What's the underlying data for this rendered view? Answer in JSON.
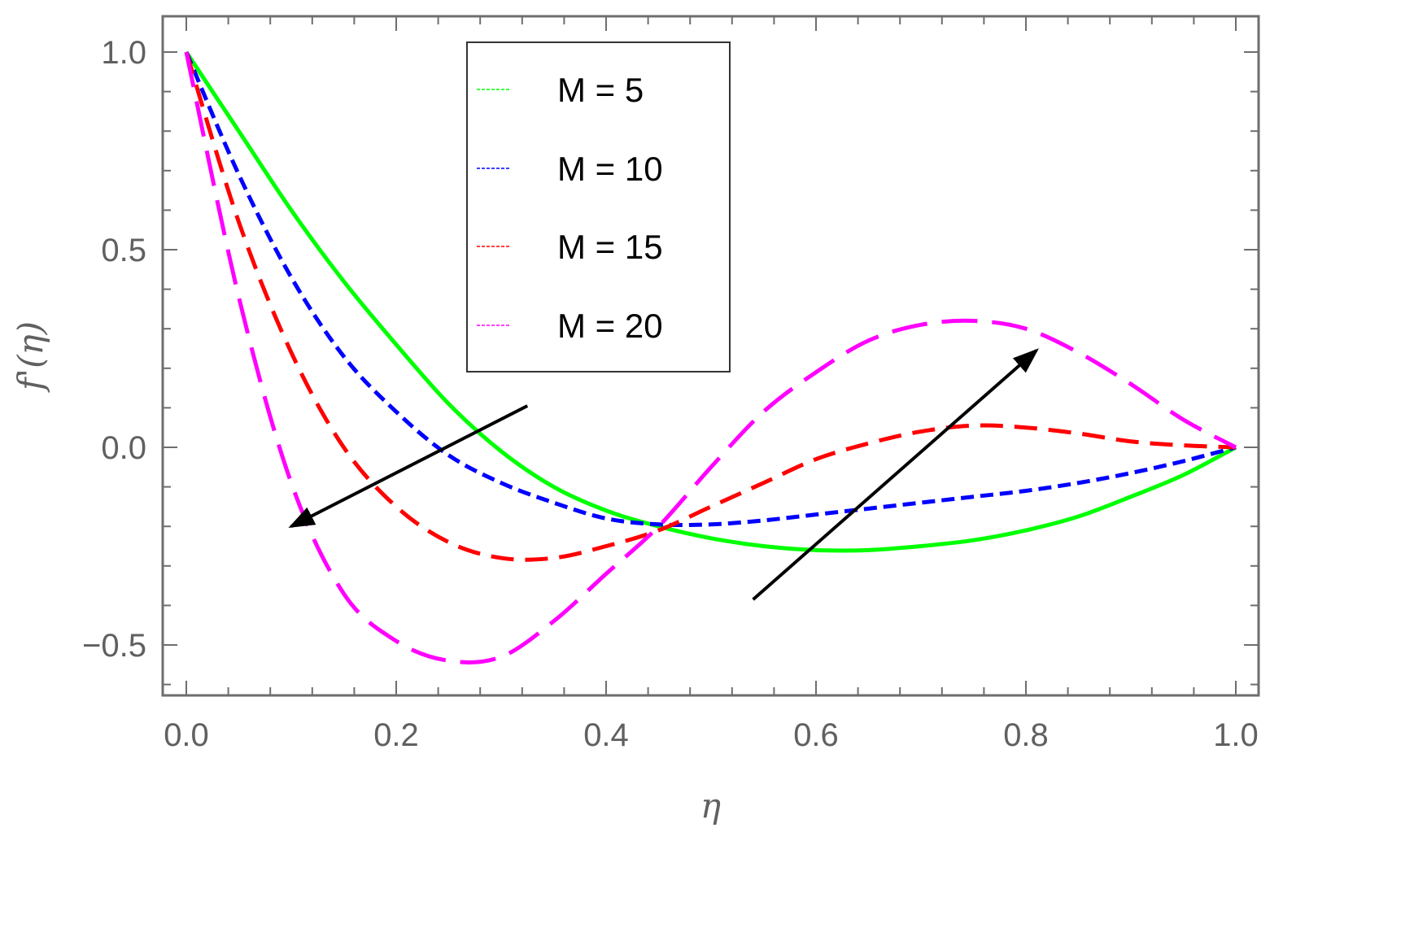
{
  "chart_data": {
    "type": "line",
    "title": "",
    "xlabel": "η",
    "ylabel": "f'(η)",
    "xlim": [
      0.0,
      1.0
    ],
    "ylim": [
      -0.6,
      1.05
    ],
    "x_ticks": [
      0.0,
      0.2,
      0.4,
      0.6,
      0.8,
      1.0
    ],
    "x_tick_labels": [
      "0.0",
      "0.2",
      "0.4",
      "0.6",
      "0.8",
      "1.0"
    ],
    "y_ticks": [
      -0.5,
      0.0,
      0.5,
      1.0
    ],
    "y_tick_labels": [
      "−0.5",
      "0.0",
      "0.5",
      "1.0"
    ],
    "legend_position": "top-center",
    "series": [
      {
        "name": "M = 5",
        "color": "#00ff00",
        "dash": "solid",
        "x": [
          0.0,
          0.05,
          0.1,
          0.15,
          0.2,
          0.25,
          0.3,
          0.35,
          0.4,
          0.45,
          0.5,
          0.55,
          0.6,
          0.65,
          0.7,
          0.75,
          0.8,
          0.85,
          0.9,
          0.95,
          1.0
        ],
        "y": [
          1.0,
          0.8,
          0.6,
          0.42,
          0.26,
          0.11,
          -0.01,
          -0.1,
          -0.16,
          -0.2,
          -0.23,
          -0.25,
          -0.26,
          -0.26,
          -0.25,
          -0.235,
          -0.21,
          -0.175,
          -0.125,
          -0.07,
          0.0
        ]
      },
      {
        "name": "M = 10",
        "color": "#0000ff",
        "dash": "short",
        "x": [
          0.0,
          0.05,
          0.1,
          0.15,
          0.2,
          0.25,
          0.3,
          0.35,
          0.4,
          0.45,
          0.5,
          0.55,
          0.6,
          0.65,
          0.7,
          0.75,
          0.8,
          0.85,
          0.9,
          0.95,
          1.0
        ],
        "y": [
          1.0,
          0.69,
          0.43,
          0.23,
          0.09,
          -0.02,
          -0.09,
          -0.14,
          -0.18,
          -0.195,
          -0.195,
          -0.185,
          -0.17,
          -0.155,
          -0.14,
          -0.125,
          -0.11,
          -0.09,
          -0.065,
          -0.035,
          0.0
        ]
      },
      {
        "name": "M = 15",
        "color": "#ff0000",
        "dash": "medium",
        "x": [
          0.0,
          0.05,
          0.1,
          0.15,
          0.2,
          0.25,
          0.3,
          0.35,
          0.4,
          0.45,
          0.5,
          0.55,
          0.6,
          0.65,
          0.7,
          0.75,
          0.8,
          0.85,
          0.9,
          0.95,
          1.0
        ],
        "y": [
          1.0,
          0.57,
          0.24,
          0.0,
          -0.15,
          -0.24,
          -0.28,
          -0.28,
          -0.25,
          -0.21,
          -0.15,
          -0.09,
          -0.03,
          0.01,
          0.04,
          0.055,
          0.05,
          0.035,
          0.015,
          0.005,
          0.0
        ]
      },
      {
        "name": "M = 20",
        "color": "#ff00ff",
        "dash": "long",
        "x": [
          0.0,
          0.05,
          0.1,
          0.15,
          0.2,
          0.25,
          0.3,
          0.35,
          0.4,
          0.45,
          0.5,
          0.55,
          0.6,
          0.65,
          0.7,
          0.75,
          0.8,
          0.85,
          0.9,
          0.95,
          1.0
        ],
        "y": [
          1.0,
          0.38,
          -0.09,
          -0.37,
          -0.49,
          -0.54,
          -0.53,
          -0.44,
          -0.32,
          -0.2,
          -0.05,
          0.09,
          0.19,
          0.27,
          0.31,
          0.32,
          0.3,
          0.24,
          0.16,
          0.07,
          0.0
        ]
      }
    ],
    "annotations": [
      {
        "type": "arrow",
        "from": [
          0.325,
          0.105
        ],
        "to": [
          0.1,
          -0.2
        ]
      },
      {
        "type": "arrow",
        "from": [
          0.54,
          -0.385
        ],
        "to": [
          0.81,
          0.245
        ]
      }
    ]
  }
}
